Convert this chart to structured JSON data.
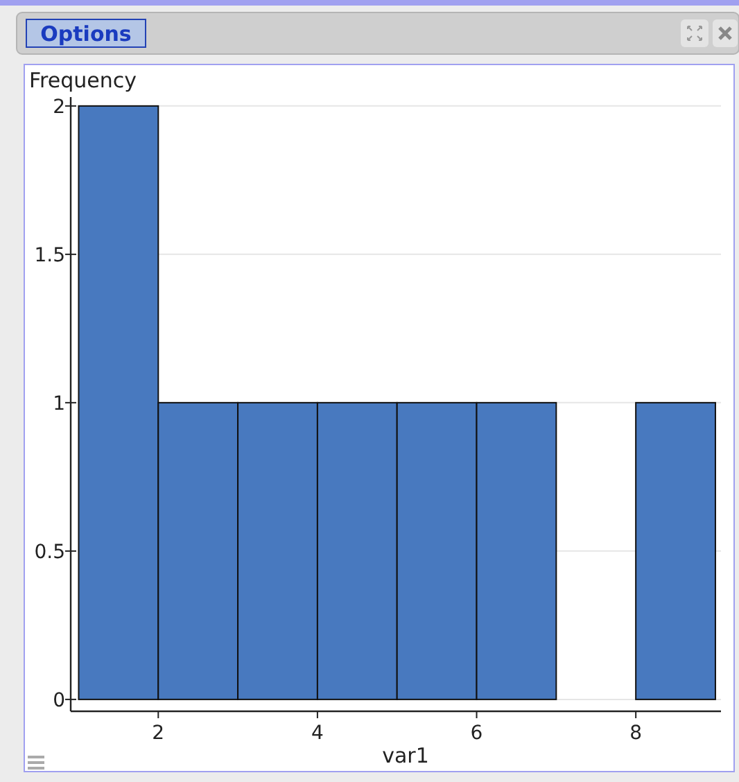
{
  "chart_data": {
    "type": "histogram",
    "xlabel": "var1",
    "ylabel": "Frequency",
    "bins": [
      1,
      2,
      3,
      4,
      5,
      6,
      7,
      8,
      9
    ],
    "values": [
      2,
      1,
      1,
      1,
      1,
      1,
      0,
      1
    ],
    "color": "#4879bf",
    "xlim": [
      0.9,
      9.07
    ],
    "xticks": [
      2,
      4,
      6,
      8
    ],
    "ylim": [
      -0.04,
      2.03
    ],
    "yticks": [
      0,
      0.5,
      1,
      1.5,
      2
    ],
    "grid": "y",
    "annotations": [
      "Options"
    ]
  }
}
